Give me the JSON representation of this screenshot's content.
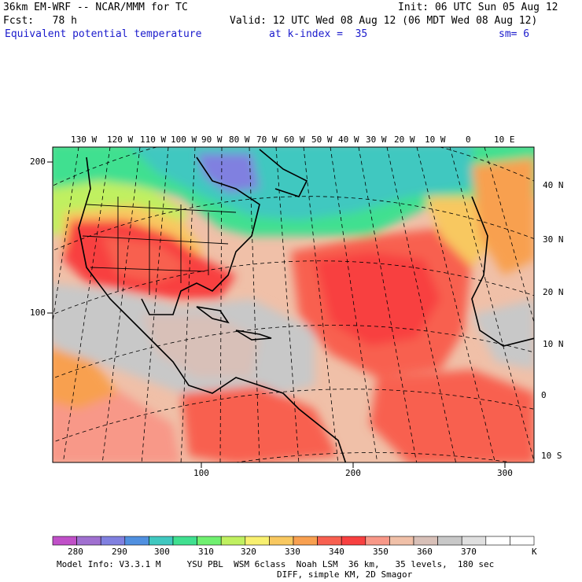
{
  "header": {
    "model": "36km EM-WRF -- NCAR/MMM for TC",
    "init": "Init: 06 UTC Sun 05 Aug 12",
    "fcst": "Fcst:   78 h",
    "valid": "Valid: 12 UTC Wed 08 Aug 12 (06 MDT Wed 08 Aug 12)",
    "field": "Equivalent potential temperature",
    "level": "at k-index =  35",
    "smooth": "sm= 6"
  },
  "axes": {
    "top_lon": [
      "130 W",
      "120 W",
      "110 W",
      "100 W",
      "90 W",
      "80 W",
      "70 W",
      "60 W",
      "50 W",
      "40 W",
      "30 W",
      "20 W",
      "10 W",
      "0",
      "10 E"
    ],
    "right_lat": [
      "40 N",
      "30 N",
      "20 N",
      "10 N",
      "0",
      "10 S"
    ],
    "left_grid": [
      "200",
      "100"
    ],
    "bottom_grid": [
      "100",
      "200",
      "300"
    ]
  },
  "colorbar": {
    "labels": [
      "280",
      "290",
      "300",
      "310",
      "320",
      "330",
      "340",
      "350",
      "360",
      "370"
    ],
    "unit": "K",
    "colors": [
      "#c050c8",
      "#a070d0",
      "#8080e0",
      "#5090e0",
      "#40c8c0",
      "#40e090",
      "#70f070",
      "#c0f060",
      "#f8f070",
      "#f8c860",
      "#f8a050",
      "#f86050",
      "#f84040",
      "#f89888",
      "#f0c0a8",
      "#d8c0b8",
      "#c8c8c8",
      "#e0e0e0",
      "#ffffff",
      "#ffffff"
    ]
  },
  "footer": {
    "line1": "Model Info: V3.3.1 M     YSU PBL  WSM 6class  Noah LSM  36 km,   35 levels,  180 sec",
    "line2": "DIFF, simple KM, 2D Smagor"
  }
}
